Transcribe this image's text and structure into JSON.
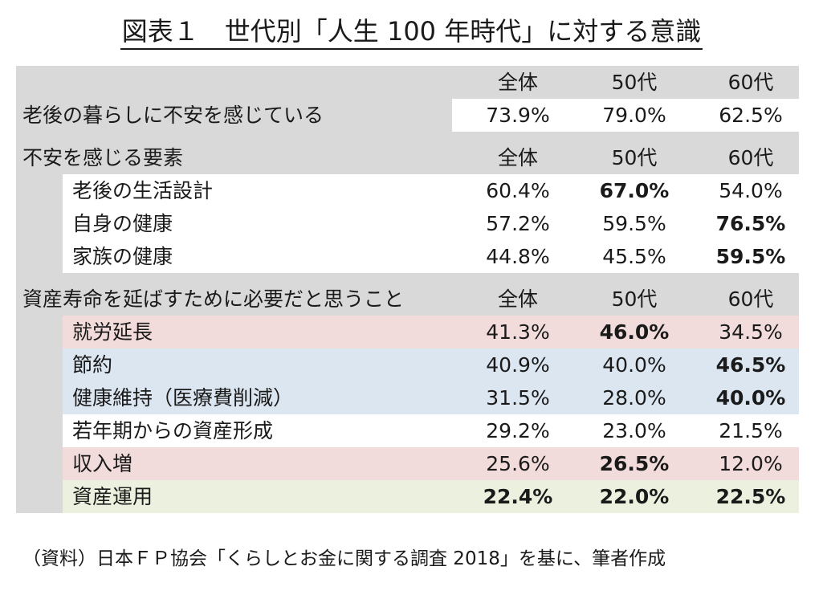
{
  "title": "図表１　世代別「人生 100 年時代」に対する意識",
  "columns": [
    "全体",
    "50代",
    "60代"
  ],
  "section1": {
    "rows": [
      {
        "label": "老後の暮らしに不安を感じている",
        "values": [
          "73.9%",
          "79.0%",
          "62.5%"
        ],
        "bold": [
          false,
          false,
          false
        ]
      }
    ]
  },
  "section2": {
    "heading": "不安を感じる要素",
    "rows": [
      {
        "label": "老後の生活設計",
        "values": [
          "60.4%",
          "67.0%",
          "54.0%"
        ],
        "bold": [
          false,
          true,
          false
        ],
        "bg": "white"
      },
      {
        "label": "自身の健康",
        "values": [
          "57.2%",
          "59.5%",
          "76.5%"
        ],
        "bold": [
          false,
          false,
          true
        ],
        "bg": "white"
      },
      {
        "label": "家族の健康",
        "values": [
          "44.8%",
          "45.5%",
          "59.5%"
        ],
        "bold": [
          false,
          false,
          true
        ],
        "bg": "white"
      }
    ]
  },
  "section3": {
    "heading": "資産寿命を延ばすために必要だと思うこと",
    "rows": [
      {
        "label": "就労延長",
        "values": [
          "41.3%",
          "46.0%",
          "34.5%"
        ],
        "bold": [
          false,
          true,
          false
        ],
        "bg": "pink"
      },
      {
        "label": "節約",
        "values": [
          "40.9%",
          "40.0%",
          "46.5%"
        ],
        "bold": [
          false,
          false,
          true
        ],
        "bg": "blue"
      },
      {
        "label": "健康維持（医療費削減）",
        "values": [
          "31.5%",
          "28.0%",
          "40.0%"
        ],
        "bold": [
          false,
          false,
          true
        ],
        "bg": "blue"
      },
      {
        "label": "若年期からの資産形成",
        "values": [
          "29.2%",
          "23.0%",
          "21.5%"
        ],
        "bold": [
          false,
          false,
          false
        ],
        "bg": "white"
      },
      {
        "label": "収入増",
        "values": [
          "25.6%",
          "26.5%",
          "12.0%"
        ],
        "bold": [
          false,
          true,
          false
        ],
        "bg": "pink"
      },
      {
        "label": "資産運用",
        "values": [
          "22.4%",
          "22.0%",
          "22.5%"
        ],
        "bold": [
          true,
          true,
          true
        ],
        "bg": "green"
      }
    ]
  },
  "source": "（資料）日本ＦＰ協会「くらしとお金に関する調査 2018」を基に、筆者作成",
  "colors": {
    "grey": "#d9d9d9",
    "pink": "#f2dcdb",
    "blue": "#dce6f1",
    "green": "#ebf1de"
  }
}
